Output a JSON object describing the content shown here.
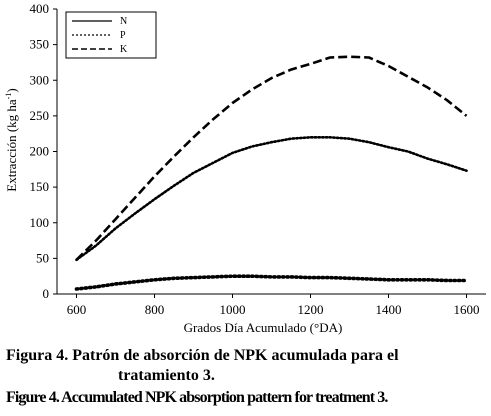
{
  "chart_data": {
    "type": "line",
    "xlabel": "Grados Día Acumulado (°DA)",
    "ylabel_main": "Extracción (kg ha",
    "ylabel_sup": "-1",
    "ylabel_end": ")",
    "xlim": [
      550,
      1650
    ],
    "ylim": [
      0,
      400
    ],
    "xticks": [
      600,
      800,
      1000,
      1200,
      1400,
      1600
    ],
    "yticks": [
      0,
      50,
      100,
      150,
      200,
      250,
      300,
      350,
      400
    ],
    "legend_position": "top-left",
    "grid": false,
    "series": [
      {
        "name": "N",
        "style": "dotted",
        "x": [
          600,
          650,
          700,
          750,
          800,
          850,
          900,
          950,
          1000,
          1050,
          1100,
          1150,
          1200,
          1250,
          1300,
          1350,
          1400,
          1450,
          1500,
          1550,
          1600
        ],
        "values": [
          48,
          68,
          92,
          113,
          133,
          152,
          170,
          184,
          198,
          207,
          213,
          218,
          220,
          220,
          218,
          213,
          206,
          200,
          190,
          182,
          173
        ]
      },
      {
        "name": "P",
        "style": "dotted-thick",
        "x": [
          600,
          650,
          700,
          750,
          800,
          850,
          900,
          950,
          1000,
          1050,
          1100,
          1150,
          1200,
          1250,
          1300,
          1350,
          1400,
          1450,
          1500,
          1550,
          1600
        ],
        "values": [
          7,
          10,
          14,
          17,
          20,
          22,
          23,
          24,
          25,
          25,
          24,
          24,
          23,
          23,
          22,
          21,
          20,
          20,
          20,
          19,
          19
        ]
      },
      {
        "name": "K",
        "style": "dashed",
        "x": [
          600,
          650,
          700,
          750,
          800,
          850,
          900,
          950,
          1000,
          1050,
          1100,
          1150,
          1200,
          1250,
          1300,
          1350,
          1400,
          1450,
          1500,
          1550,
          1600
        ],
        "values": [
          48,
          75,
          105,
          135,
          165,
          193,
          220,
          245,
          268,
          287,
          303,
          315,
          323,
          332,
          333,
          332,
          320,
          305,
          290,
          272,
          250
        ]
      }
    ]
  },
  "captions": {
    "es_line1": "Figura 4. Patrón de absorción de NPK acumulada para el",
    "es_line2": "tratamiento 3.",
    "en": "Figure 4. Accumulated NPK absorption pattern for treatment 3."
  }
}
